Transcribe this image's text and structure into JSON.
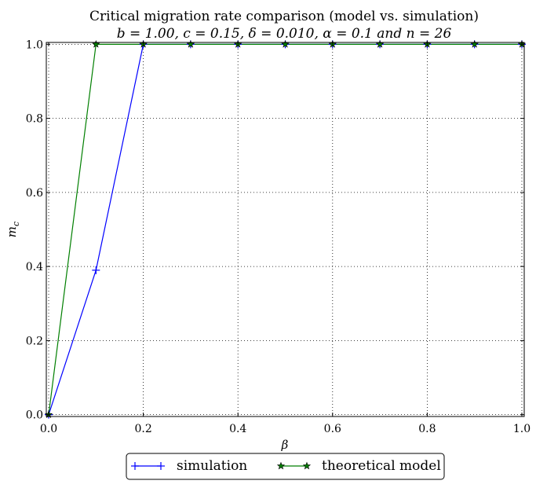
{
  "chart_data": {
    "type": "line",
    "title": "Critical migration rate comparison (model vs. simulation)",
    "subtitle": "b = 1.00, c = 0.15, δ = 0.010, α = 0.1 and n = 26",
    "xlabel": "β",
    "ylabel": "m_c",
    "xlim": [
      -0.005,
      1.005
    ],
    "ylim": [
      -0.005,
      1.005
    ],
    "xticks": [
      0.0,
      0.2,
      0.4,
      0.6,
      0.8,
      1.0
    ],
    "yticks": [
      0.0,
      0.2,
      0.4,
      0.6,
      0.8,
      1.0
    ],
    "xtick_labels": [
      "0.0",
      "0.2",
      "0.4",
      "0.6",
      "0.8",
      "1.0"
    ],
    "ytick_labels": [
      "0.0",
      "0.2",
      "0.4",
      "0.6",
      "0.8",
      "1.0"
    ],
    "grid": true,
    "legend_position": "bottom-center, outside",
    "series": [
      {
        "name": "simulation",
        "color": "#0000ff",
        "marker": "plus",
        "x": [
          0.0,
          0.1,
          0.2,
          0.3,
          0.4,
          0.5,
          0.6,
          0.7,
          0.8,
          0.9,
          1.0
        ],
        "y": [
          0.0,
          0.39,
          1.0,
          1.0,
          1.0,
          1.0,
          1.0,
          1.0,
          1.0,
          1.0,
          1.0
        ]
      },
      {
        "name": "theoretical model",
        "color": "#007f00",
        "marker": "star",
        "x": [
          0.0,
          0.1,
          0.2,
          0.3,
          0.4,
          0.5,
          0.6,
          0.7,
          0.8,
          0.9,
          1.0
        ],
        "y": [
          0.0,
          1.0,
          1.0,
          1.0,
          1.0,
          1.0,
          1.0,
          1.0,
          1.0,
          1.0,
          1.0
        ]
      }
    ]
  }
}
